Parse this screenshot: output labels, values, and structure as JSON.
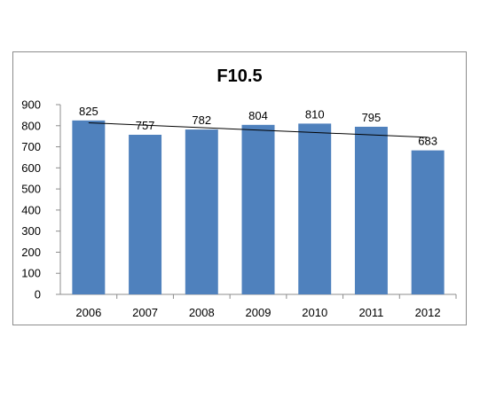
{
  "chart_data": {
    "type": "bar",
    "title": "F10.5",
    "xlabel": "",
    "ylabel": "",
    "categories": [
      "2006",
      "2007",
      "2008",
      "2009",
      "2010",
      "2011",
      "2012"
    ],
    "values": [
      825,
      757,
      782,
      804,
      810,
      795,
      683
    ],
    "data_labels": [
      "825",
      "757",
      "782",
      "804",
      "810",
      "795",
      "683"
    ],
    "ylim": [
      0,
      900
    ],
    "yticks": [
      0,
      100,
      200,
      300,
      400,
      500,
      600,
      700,
      800,
      900
    ],
    "grid": false,
    "legend": "none",
    "trendline": {
      "type": "linear",
      "color": "#000000"
    },
    "bar_color": "#4f81bd"
  }
}
